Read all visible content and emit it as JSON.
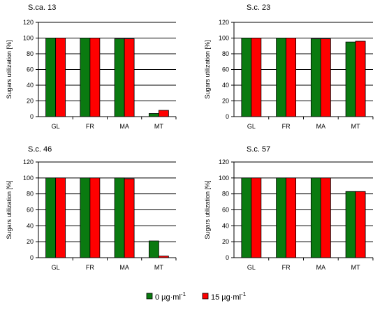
{
  "colors": {
    "series_0": "#0a7a10",
    "series_1": "#ff0000",
    "grid": "#000000",
    "background": "#ffffff"
  },
  "legend": {
    "items": [
      {
        "label": "0 µg·ml",
        "sup": "-1",
        "color_key": "series_0"
      },
      {
        "label": "15 µg·ml",
        "sup": "-1",
        "color_key": "series_1"
      }
    ]
  },
  "chart_data": [
    {
      "type": "bar",
      "title": "S.ca. 13",
      "ylabel": "Sugars utilization [%]",
      "categories": [
        "GL",
        "FR",
        "MA",
        "MT"
      ],
      "ylim": [
        0,
        120
      ],
      "yticks": [
        0,
        20,
        40,
        60,
        80,
        100,
        120
      ],
      "grid": true,
      "series": [
        {
          "values": [
            100,
            100,
            99,
            4
          ]
        },
        {
          "values": [
            100,
            100,
            99,
            8
          ]
        }
      ]
    },
    {
      "type": "bar",
      "title": "S.c. 23",
      "ylabel": "Sugars utilization [%]",
      "categories": [
        "GL",
        "FR",
        "MA",
        "MT"
      ],
      "ylim": [
        0,
        120
      ],
      "yticks": [
        0,
        20,
        40,
        60,
        80,
        100,
        120
      ],
      "grid": true,
      "series": [
        {
          "values": [
            100,
            100,
            99,
            95
          ]
        },
        {
          "values": [
            100,
            100,
            99,
            96
          ]
        }
      ]
    },
    {
      "type": "bar",
      "title": "S.c. 46",
      "ylabel": "Sugars utilization [%]",
      "categories": [
        "GL",
        "FR",
        "MA",
        "MT"
      ],
      "ylim": [
        0,
        120
      ],
      "yticks": [
        0,
        20,
        40,
        60,
        80,
        100,
        120
      ],
      "grid": true,
      "series": [
        {
          "values": [
            100,
            100,
            100,
            21
          ]
        },
        {
          "values": [
            100,
            100,
            99,
            2
          ]
        }
      ]
    },
    {
      "type": "bar",
      "title": "S.c. 57",
      "ylabel": "Sugars utilization [%]",
      "categories": [
        "GL",
        "FR",
        "MA",
        "MT"
      ],
      "ylim": [
        0,
        120
      ],
      "yticks": [
        0,
        20,
        40,
        60,
        80,
        100,
        120
      ],
      "grid": true,
      "series": [
        {
          "values": [
            100,
            100,
            100,
            83
          ]
        },
        {
          "values": [
            100,
            100,
            100,
            83
          ]
        }
      ]
    }
  ]
}
